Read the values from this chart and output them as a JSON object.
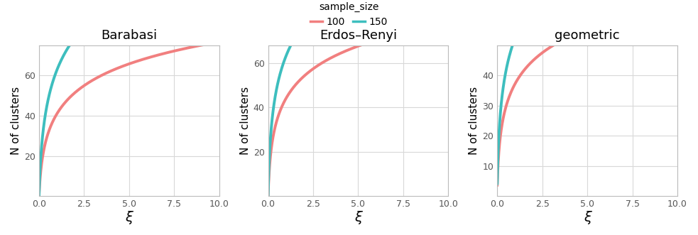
{
  "panels": [
    {
      "title": "Barabasi",
      "series": [
        {
          "label": "100",
          "color": "#F17F7F",
          "a": 16.0,
          "k": 12.0,
          "c": 0.0
        },
        {
          "label": "150",
          "color": "#3DBEBE",
          "a": 24.5,
          "k": 12.0,
          "c": 0.0
        }
      ],
      "ylim": [
        0,
        75
      ],
      "yticks": [
        20,
        40,
        60
      ],
      "ylabel": "N of clusters"
    },
    {
      "title": "Erdos–Renyi",
      "series": [
        {
          "label": "100",
          "color": "#F17F7F",
          "a": 15.0,
          "k": 18.0,
          "c": 0.0
        },
        {
          "label": "150",
          "color": "#3DBEBE",
          "a": 21.5,
          "k": 18.0,
          "c": 0.0
        }
      ],
      "ylim": [
        0,
        68
      ],
      "yticks": [
        20,
        40,
        60
      ],
      "ylabel": "N of clusters"
    },
    {
      "title": "geometric",
      "series": [
        {
          "label": "100",
          "color": "#F17F7F",
          "a": 11.5,
          "k": 18.0,
          "c": 3.5
        },
        {
          "label": "150",
          "color": "#3DBEBE",
          "a": 16.5,
          "k": 18.0,
          "c": 4.0
        }
      ],
      "ylim": [
        0,
        50
      ],
      "yticks": [
        10,
        20,
        30,
        40
      ],
      "ylabel": "N of clusters"
    }
  ],
  "legend_labels": [
    "100",
    "150"
  ],
  "legend_colors": [
    "#F17F7F",
    "#3DBEBE"
  ],
  "xlabel": "ξ",
  "xlim": [
    0,
    10
  ],
  "xticks": [
    0.0,
    2.5,
    5.0,
    7.5,
    10.0
  ],
  "xticklabels": [
    "0.0",
    "2.5",
    "5.0",
    "7.5",
    "10.0"
  ],
  "background_color": "#FFFFFF",
  "panel_bg": "#FFFFFF",
  "grid_color": "#D8D8D8",
  "title_fontsize": 13,
  "label_fontsize": 11,
  "tick_fontsize": 9,
  "legend_title": "sample_size",
  "line_width": 2.8
}
